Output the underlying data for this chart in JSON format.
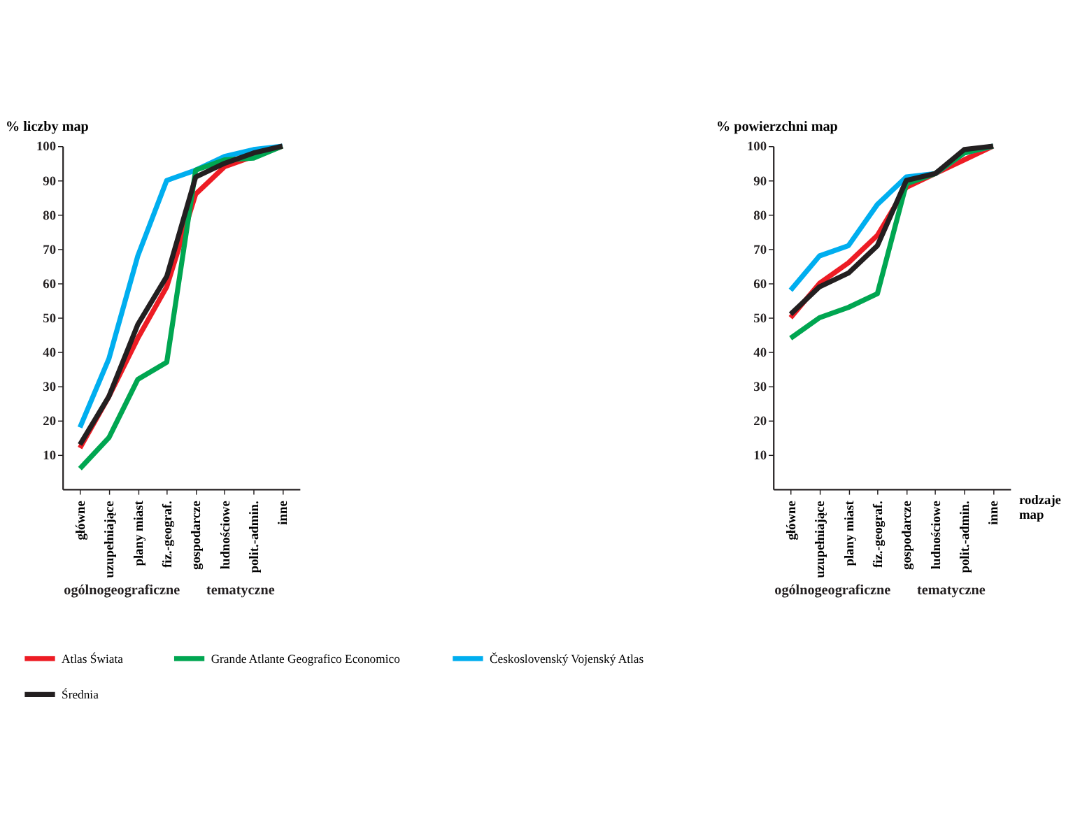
{
  "chart_data": [
    {
      "type": "line",
      "title": "% liczby map",
      "categories": [
        "główne",
        "uzupełniające",
        "plany miast",
        "fiz.-geograf.",
        "gospodarcze",
        "ludnościowe",
        "polit.-admin.",
        "inne"
      ],
      "ylim": [
        0,
        100
      ],
      "yticks": [
        10,
        20,
        30,
        40,
        50,
        60,
        70,
        80,
        90,
        100
      ],
      "grid": false,
      "legend": "bottom",
      "line_style": "solid",
      "marker": "none",
      "annotations": [
        "ogólnogeograficzne",
        "tematyczne"
      ],
      "series": [
        {
          "name": "Atlas Świata",
          "color": "#ed1c24",
          "values": [
            12,
            27,
            44,
            59,
            86,
            94,
            97,
            100
          ]
        },
        {
          "name": "Československý Vojenský Atlas",
          "color": "#00aeef",
          "values": [
            18,
            38,
            68,
            90,
            93,
            97,
            99,
            100
          ]
        },
        {
          "name": "Grande Atlante Geografico Economico",
          "color": "#00a651",
          "values": [
            6,
            15,
            32,
            37,
            93,
            96,
            96.5,
            100
          ]
        },
        {
          "name": "Średnia",
          "color": "#231f20",
          "values": [
            13,
            27,
            48,
            62,
            91,
            95,
            98,
            100
          ]
        }
      ]
    },
    {
      "type": "line",
      "title": "% powierzchni map",
      "xlabel": "rodzaje map",
      "categories": [
        "główne",
        "uzupełniające",
        "plany miast",
        "fiz.-geograf.",
        "gospodarcze",
        "ludnościowe",
        "polit.-admin.",
        "inne"
      ],
      "ylim": [
        0,
        100
      ],
      "yticks": [
        10,
        20,
        30,
        40,
        50,
        60,
        70,
        80,
        90,
        100
      ],
      "grid": false,
      "line_style": "solid",
      "marker": "none",
      "annotations": [
        "ogólnogeograficzne",
        "tematyczne"
      ],
      "series": [
        {
          "color": "#ed1c24",
          "values": [
            50,
            60,
            66,
            74,
            88,
            92,
            96,
            100
          ]
        },
        {
          "color": "#00aeef",
          "values": [
            58,
            68,
            71,
            83,
            91,
            92,
            98,
            100
          ]
        },
        {
          "color": "#00a651",
          "values": [
            44,
            50,
            53,
            57,
            89,
            92,
            98,
            100
          ]
        },
        {
          "color": "#231f20",
          "values": [
            51,
            59,
            63,
            71,
            90,
            92,
            99,
            100
          ]
        }
      ]
    }
  ]
}
